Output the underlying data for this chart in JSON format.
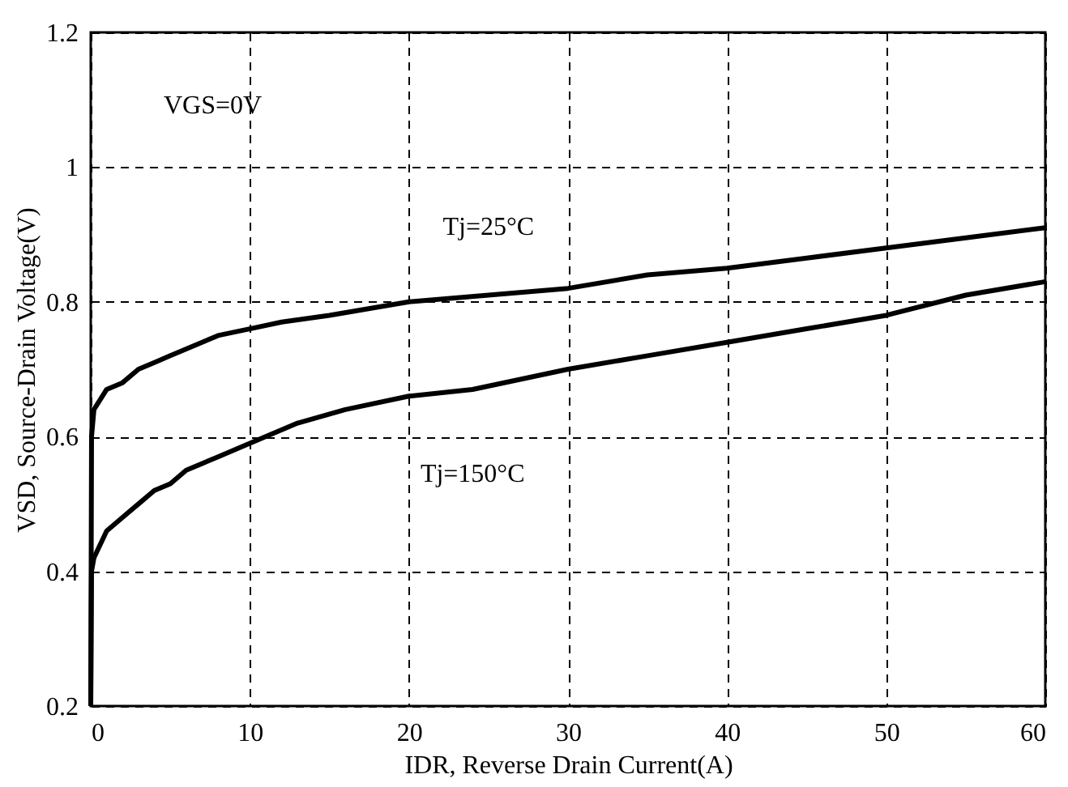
{
  "chart_data": {
    "type": "line",
    "xlabel": "IDR, Reverse Drain Current(A)",
    "ylabel": "VSD, Source-Drain Voltage(V)",
    "xlim": [
      0,
      60
    ],
    "xticks": [
      0,
      10,
      20,
      30,
      40,
      50,
      60
    ],
    "ylim": [
      0.2,
      1.2
    ],
    "yticks": [
      0.2,
      0.4,
      0.6,
      0.8,
      1,
      1.2
    ],
    "grid": true,
    "line_style": "solid",
    "annotations": [
      "VGS=0V"
    ],
    "series": [
      {
        "name": "Tj=25°C",
        "color": "#000000",
        "x": [
          0,
          0.05,
          0.2,
          1,
          2,
          3,
          4,
          5,
          6,
          8,
          10,
          12,
          15,
          20,
          25,
          30,
          35,
          40,
          45,
          50,
          55,
          60
        ],
        "values": [
          0.2,
          0.6,
          0.64,
          0.67,
          0.68,
          0.7,
          0.71,
          0.72,
          0.73,
          0.75,
          0.76,
          0.77,
          0.78,
          0.8,
          0.81,
          0.82,
          0.84,
          0.85,
          0.865,
          0.88,
          0.895,
          0.91
        ]
      },
      {
        "name": "Tj=150°C",
        "color": "#000000",
        "x": [
          0,
          0.05,
          0.2,
          1,
          2,
          3,
          4,
          5,
          6,
          8,
          10,
          13,
          16,
          20,
          24,
          30,
          35,
          40,
          45,
          50,
          55,
          60
        ],
        "values": [
          0.2,
          0.4,
          0.42,
          0.46,
          0.48,
          0.5,
          0.52,
          0.53,
          0.55,
          0.57,
          0.59,
          0.62,
          0.64,
          0.66,
          0.67,
          0.7,
          0.72,
          0.74,
          0.76,
          0.78,
          0.81,
          0.83
        ]
      }
    ]
  }
}
